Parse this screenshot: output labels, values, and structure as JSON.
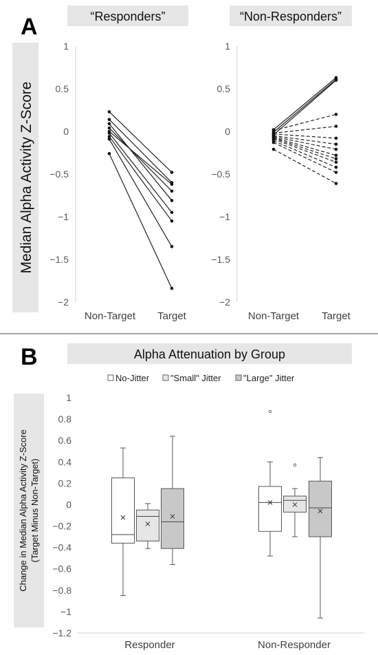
{
  "panels": {
    "a_label": "A",
    "b_label": "B"
  },
  "chart_data": [
    {
      "type": "line",
      "title": "“Responders”",
      "ylabel": "Median Alpha Activity Z-Score",
      "categories": [
        "Non-Target",
        "Target"
      ],
      "ylim": [
        -2,
        1
      ],
      "yticks": [
        1,
        0.5,
        0,
        -0.5,
        -1,
        -1.5,
        -2
      ],
      "grid": false,
      "series": [
        {
          "values": [
            0.23,
            -0.48
          ]
        },
        {
          "values": [
            0.14,
            -0.6
          ]
        },
        {
          "values": [
            0.09,
            -0.81
          ]
        },
        {
          "values": [
            0.04,
            -0.7
          ]
        },
        {
          "values": [
            0.0,
            -0.62
          ]
        },
        {
          "values": [
            -0.02,
            -0.95
          ]
        },
        {
          "values": [
            -0.06,
            -1.05
          ]
        },
        {
          "values": [
            -0.09,
            -1.35
          ]
        },
        {
          "values": [
            -0.26,
            -1.84
          ]
        }
      ]
    },
    {
      "type": "line",
      "title": "“Non-Responders”",
      "categories": [
        "Non-Target",
        "Target"
      ],
      "ylim": [
        -2,
        1
      ],
      "yticks": [
        1,
        0.5,
        0,
        -0.5,
        -1,
        -1.5,
        -2
      ],
      "grid": false,
      "series": [
        {
          "values": [
            0.02,
            0.63
          ],
          "style": "solid"
        },
        {
          "values": [
            -0.01,
            0.61
          ],
          "style": "solid"
        },
        {
          "values": [
            -0.04,
            0.6
          ],
          "style": "solid"
        },
        {
          "values": [
            0.01,
            0.2
          ],
          "style": "dashed"
        },
        {
          "values": [
            -0.02,
            0.06
          ],
          "style": "dashed"
        },
        {
          "values": [
            -0.03,
            -0.08
          ],
          "style": "dashed"
        },
        {
          "values": [
            -0.05,
            -0.15
          ],
          "style": "dashed"
        },
        {
          "values": [
            -0.06,
            -0.21
          ],
          "style": "dashed"
        },
        {
          "values": [
            -0.07,
            -0.28
          ],
          "style": "dashed"
        },
        {
          "values": [
            -0.08,
            -0.32
          ],
          "style": "dashed"
        },
        {
          "values": [
            -0.09,
            -0.36
          ],
          "style": "dashed"
        },
        {
          "values": [
            -0.11,
            -0.42
          ],
          "style": "dashed"
        },
        {
          "values": [
            -0.13,
            -0.48
          ],
          "style": "dashed"
        },
        {
          "values": [
            -0.21,
            -0.61
          ],
          "style": "dashed"
        }
      ]
    },
    {
      "type": "boxplot",
      "title": "Alpha Attenuation by Group",
      "ylabel_line1": "Change in Median Alpha Activity Z-Score",
      "ylabel_line2": "(Target Minus Non-Target)",
      "categories": [
        "Responder",
        "Non-Responder"
      ],
      "ylim": [
        -1.2,
        1
      ],
      "yticks": [
        1,
        0.8,
        0.6,
        0.4,
        0.2,
        0,
        -0.2,
        -0.4,
        -0.6,
        -0.8,
        -1,
        -1.2
      ],
      "legend_position": "top-center",
      "series": [
        {
          "name": "No-Jitter",
          "color": "#ffffff",
          "boxes": [
            {
              "min": -0.85,
              "q1": -0.36,
              "median": -0.28,
              "q3": 0.25,
              "max": 0.53,
              "mean": -0.12,
              "outliers": []
            },
            {
              "min": -0.48,
              "q1": -0.25,
              "median": 0.02,
              "q3": 0.17,
              "max": 0.4,
              "mean": 0.02,
              "outliers": [
                0.87
              ]
            }
          ]
        },
        {
          "name": "\"Small\" Jitter",
          "color": "#e6e6e6",
          "boxes": [
            {
              "min": -0.41,
              "q1": -0.34,
              "median": -0.11,
              "q3": -0.05,
              "max": 0.01,
              "mean": -0.18,
              "outliers": []
            },
            {
              "min": -0.3,
              "q1": -0.07,
              "median": 0.04,
              "q3": 0.08,
              "max": 0.15,
              "mean": 0.0,
              "outliers": [
                0.37
              ]
            }
          ]
        },
        {
          "name": "\"Large\" Jitter",
          "color": "#c8c8c8",
          "boxes": [
            {
              "min": -0.56,
              "q1": -0.41,
              "median": -0.16,
              "q3": 0.15,
              "max": 0.64,
              "mean": -0.11,
              "outliers": []
            },
            {
              "min": -1.06,
              "q1": -0.3,
              "median": -0.03,
              "q3": 0.22,
              "max": 0.44,
              "mean": -0.06,
              "outliers": []
            }
          ]
        }
      ]
    }
  ]
}
